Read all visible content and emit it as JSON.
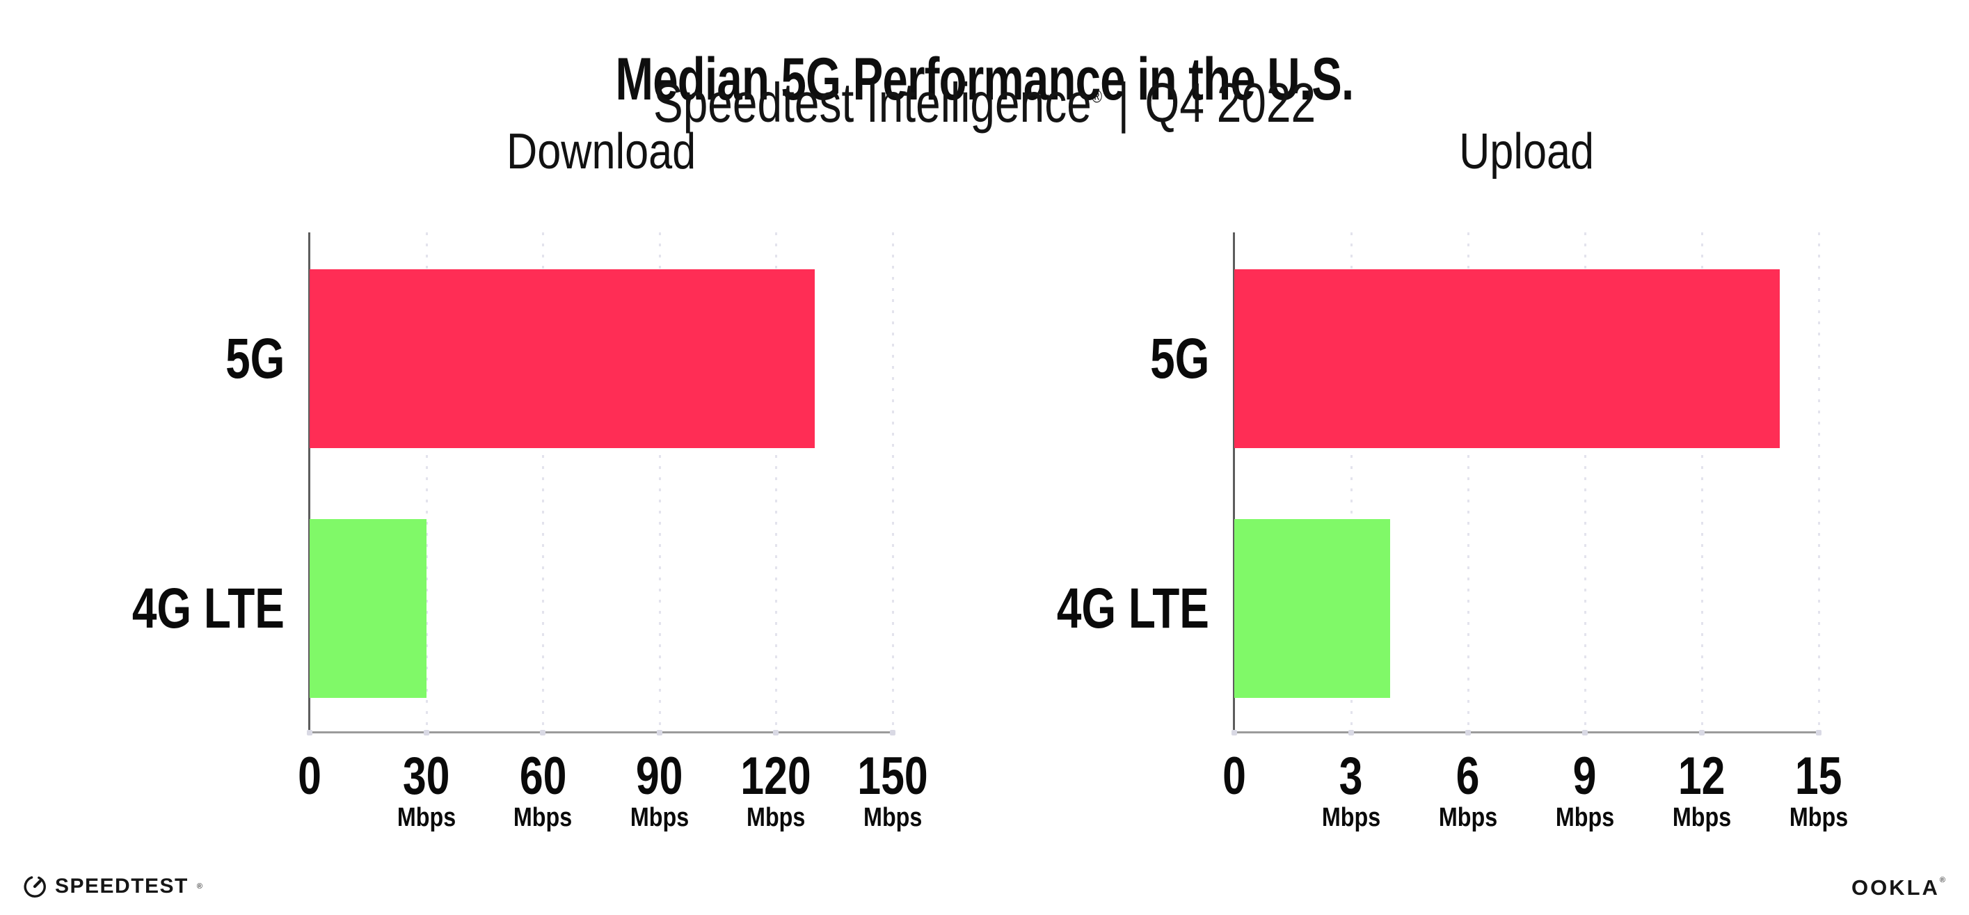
{
  "header": {
    "title": "Median 5G Performance in the U.S.",
    "subtitle_product": "Speedtest Intelligence",
    "subtitle_trademark": "®",
    "subtitle_divider": "|",
    "subtitle_period": "Q4 2022"
  },
  "colors": {
    "bar_5g": "#FF2D55",
    "bar_4g_lte": "#80F968",
    "grid": "#E3E3ED",
    "axis_x": "#9B9B9B",
    "axis_y": "#5D5D5D",
    "text": "#0E0E0E"
  },
  "chart_data": [
    {
      "type": "bar",
      "orientation": "horizontal",
      "title": "Download",
      "categories": [
        "5G",
        "4G LTE"
      ],
      "values": [
        130,
        30
      ],
      "unit": "Mbps",
      "xlim": [
        0,
        150
      ],
      "xticks": [
        0,
        30,
        60,
        90,
        120,
        150
      ],
      "tick_unit": "Mbps",
      "bar_colors": [
        "#FF2D55",
        "#80F968"
      ],
      "grid": "vertical-dotted",
      "legend": "none"
    },
    {
      "type": "bar",
      "orientation": "horizontal",
      "title": "Upload",
      "categories": [
        "5G",
        "4G LTE"
      ],
      "values": [
        14,
        4
      ],
      "unit": "Mbps",
      "xlim": [
        0,
        15
      ],
      "xticks": [
        0,
        3,
        6,
        9,
        12,
        15
      ],
      "tick_unit": "Mbps",
      "bar_colors": [
        "#FF2D55",
        "#80F968"
      ],
      "grid": "vertical-dotted",
      "legend": "none"
    }
  ],
  "footer": {
    "speedtest_label": "SPEEDTEST",
    "speedtest_mark": "®",
    "ookla_label": "OOKLA",
    "ookla_mark": "®"
  }
}
